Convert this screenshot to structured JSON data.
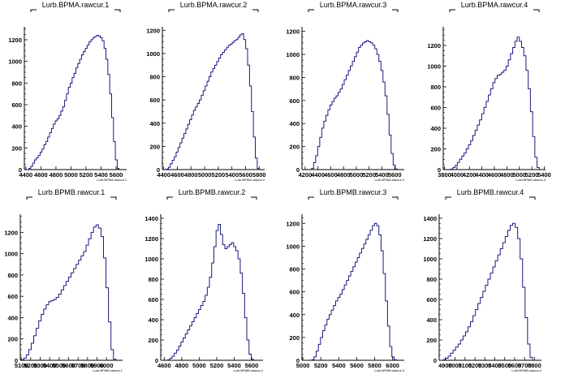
{
  "chart_data": [
    {
      "type": "bar",
      "title": "Lurb.BPMA.rawcur.1",
      "xtitle": "Lurb.BPMA.rawcur.1",
      "xlim": [
        4380,
        5740
      ],
      "xticks": [
        4400,
        4600,
        4800,
        5000,
        5200,
        5400,
        5600
      ],
      "ylim": [
        0,
        1320
      ],
      "yticks": [
        0,
        200,
        400,
        600,
        800,
        1000,
        1200
      ],
      "grid": false,
      "series": [
        {
          "x_start": 4440,
          "x_end": 5640,
          "values": [
            10,
            30,
            60,
            90,
            110,
            130,
            160,
            190,
            230,
            260,
            300,
            340,
            380,
            420,
            450,
            470,
            500,
            540,
            580,
            640,
            700,
            760,
            800,
            850,
            890,
            940,
            980,
            1020,
            1060,
            1090,
            1120,
            1150,
            1180,
            1200,
            1220,
            1230,
            1240,
            1235,
            1220,
            1190,
            1120,
            1020,
            880,
            700,
            480,
            260,
            90,
            10
          ]
        }
      ]
    },
    {
      "type": "bar",
      "title": "Lurb.BPMA.rawcur.2",
      "xtitle": "Lurb.BPMA.rawcur.2",
      "xlim": [
        4380,
        5880
      ],
      "xticks": [
        4400,
        4600,
        4800,
        5000,
        5200,
        5400,
        5600,
        5800
      ],
      "ylim": [
        0,
        1230
      ],
      "yticks": [
        0,
        200,
        400,
        600,
        800,
        1000,
        1200
      ],
      "grid": false,
      "series": [
        {
          "x_start": 4440,
          "x_end": 5800,
          "values": [
            5,
            20,
            50,
            80,
            110,
            150,
            190,
            230,
            270,
            310,
            350,
            390,
            430,
            470,
            510,
            540,
            570,
            600,
            640,
            680,
            720,
            760,
            800,
            840,
            870,
            900,
            930,
            960,
            990,
            1010,
            1030,
            1050,
            1070,
            1080,
            1095,
            1110,
            1120,
            1140,
            1160,
            1170,
            1120,
            1040,
            900,
            720,
            500,
            280,
            100,
            10
          ]
        }
      ]
    },
    {
      "type": "bar",
      "title": "Lurb.BPMA.rawcur.3",
      "xtitle": "Lurb.BPMA.rawcur.3",
      "xlim": [
        4150,
        5750
      ],
      "xticks": [
        4200,
        4400,
        4600,
        4800,
        5000,
        5200,
        5400,
        5600
      ],
      "ylim": [
        0,
        1240
      ],
      "yticks": [
        0,
        200,
        400,
        600,
        800,
        1000,
        1200
      ],
      "grid": false,
      "series": [
        {
          "x_start": 4300,
          "x_end": 5640,
          "values": [
            10,
            60,
            120,
            200,
            280,
            360,
            420,
            470,
            520,
            560,
            590,
            620,
            640,
            670,
            700,
            740,
            780,
            820,
            860,
            900,
            940,
            980,
            1020,
            1060,
            1080,
            1100,
            1110,
            1120,
            1110,
            1100,
            1080,
            1050,
            1000,
            940,
            860,
            760,
            640,
            480,
            300,
            140,
            40,
            5
          ]
        }
      ]
    },
    {
      "type": "bar",
      "title": "Lurb.BPMA.rawcur.4",
      "xtitle": "Lurb.BPMA.rawcur.4",
      "xlim": [
        3780,
        5420
      ],
      "xticks": [
        3800,
        4000,
        4200,
        4400,
        4600,
        4800,
        5000,
        5200,
        5400
      ],
      "ylim": [
        0,
        1380
      ],
      "yticks": [
        0,
        200,
        400,
        600,
        800,
        1000,
        1200
      ],
      "grid": false,
      "series": [
        {
          "x_start": 3900,
          "x_end": 5320,
          "values": [
            5,
            20,
            40,
            70,
            100,
            130,
            160,
            200,
            240,
            280,
            330,
            380,
            430,
            480,
            540,
            600,
            660,
            720,
            780,
            840,
            880,
            910,
            920,
            940,
            960,
            1000,
            1060,
            1120,
            1180,
            1240,
            1280,
            1240,
            1180,
            1100,
            960,
            780,
            560,
            320,
            120,
            20
          ]
        }
      ]
    },
    {
      "type": "bar",
      "title": "Lurb.BPMB.rawcur.1",
      "xtitle": "Lurb.BPMB.rawcur.1",
      "xlim": [
        5090,
        6170
      ],
      "xticks": [
        5100,
        5200,
        5300,
        5400,
        5500,
        5600,
        5700,
        5800,
        5900,
        6000
      ],
      "ylim": [
        0,
        1370
      ],
      "yticks": [
        0,
        200,
        400,
        600,
        800,
        1000,
        1200
      ],
      "grid": false,
      "series": [
        {
          "x_start": 5100,
          "x_end": 6100,
          "values": [
            5,
            20,
            50,
            100,
            160,
            230,
            300,
            370,
            430,
            480,
            520,
            550,
            560,
            570,
            590,
            620,
            660,
            700,
            740,
            780,
            820,
            860,
            900,
            940,
            980,
            1020,
            1080,
            1140,
            1200,
            1250,
            1270,
            1240,
            1160,
            960,
            680,
            360,
            100,
            10
          ]
        }
      ]
    },
    {
      "type": "bar",
      "title": "Lurb.BPMB.rawcur.2",
      "xtitle": "Lurb.BPMB.rawcur.2",
      "xlim": [
        4560,
        5730
      ],
      "xticks": [
        4600,
        4800,
        5000,
        5200,
        5400,
        5600
      ],
      "ylim": [
        0,
        1440
      ],
      "yticks": [
        0,
        200,
        400,
        600,
        800,
        1000,
        1200,
        1400
      ],
      "grid": false,
      "series": [
        {
          "x_start": 4640,
          "x_end": 5620,
          "values": [
            5,
            20,
            40,
            70,
            100,
            140,
            180,
            220,
            260,
            300,
            340,
            380,
            420,
            460,
            500,
            540,
            580,
            640,
            720,
            820,
            960,
            1120,
            1280,
            1340,
            1240,
            1140,
            1100,
            1120,
            1140,
            1160,
            1120,
            1080,
            1000,
            860,
            660,
            420,
            200,
            60,
            10
          ]
        }
      ]
    },
    {
      "type": "bar",
      "title": "Lurb.BPMB.rawcur.3",
      "xtitle": "Lurb.BPMB.rawcur.3",
      "xlim": [
        4990,
        6130
      ],
      "xticks": [
        5000,
        5200,
        5400,
        5600,
        5800,
        6000
      ],
      "ylim": [
        0,
        1280
      ],
      "yticks": [
        0,
        200,
        400,
        600,
        800,
        1000,
        1200
      ],
      "grid": false,
      "series": [
        {
          "x_start": 5100,
          "x_end": 6040,
          "values": [
            5,
            30,
            80,
            140,
            200,
            260,
            310,
            360,
            400,
            440,
            480,
            520,
            550,
            580,
            620,
            660,
            700,
            740,
            780,
            820,
            860,
            900,
            940,
            980,
            1020,
            1060,
            1100,
            1140,
            1180,
            1200,
            1180,
            1100,
            960,
            760,
            520,
            300,
            120,
            30,
            5
          ]
        }
      ]
    },
    {
      "type": "bar",
      "title": "Lurb.BPMB.rawcur.4",
      "xtitle": "Lurb.BPMB.rawcur.4",
      "xlim": [
        4840,
        5870
      ],
      "xticks": [
        4900,
        5000,
        5100,
        5200,
        5300,
        5400,
        5500,
        5600,
        5700,
        5800
      ],
      "ylim": [
        0,
        1440
      ],
      "yticks": [
        0,
        200,
        400,
        600,
        800,
        1000,
        1200,
        1400
      ],
      "grid": false,
      "series": [
        {
          "x_start": 4880,
          "x_end": 5780,
          "values": [
            5,
            20,
            40,
            70,
            100,
            130,
            160,
            200,
            240,
            280,
            330,
            380,
            440,
            500,
            560,
            620,
            680,
            740,
            800,
            860,
            920,
            980,
            1040,
            1100,
            1160,
            1220,
            1280,
            1330,
            1350,
            1310,
            1200,
            1000,
            720,
            420,
            160,
            30
          ]
        }
      ]
    }
  ]
}
